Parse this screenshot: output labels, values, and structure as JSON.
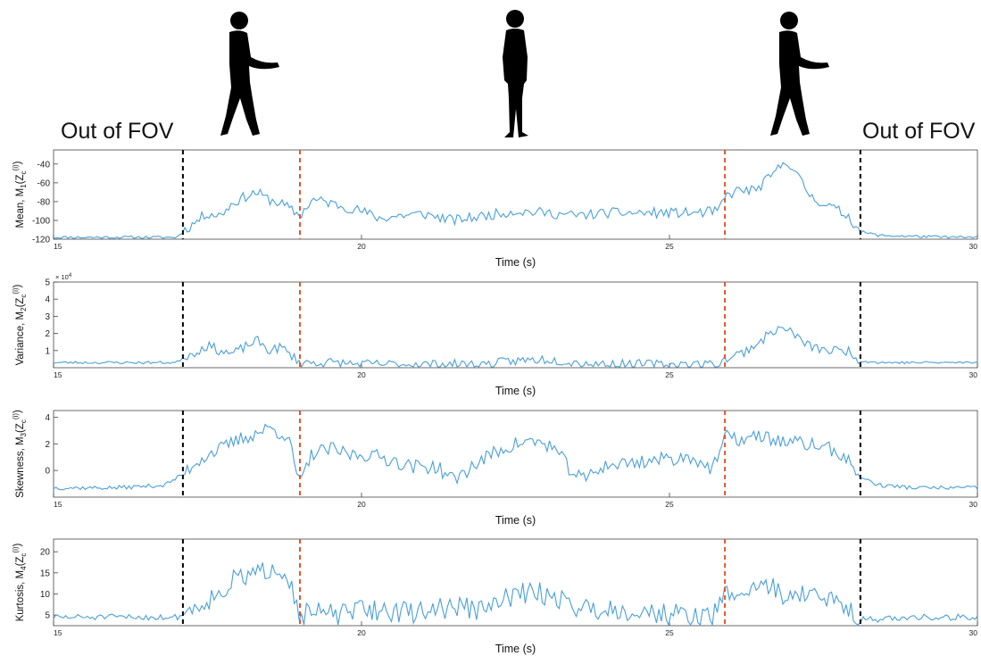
{
  "labels": {
    "out_of_fov_left": "Out of FOV",
    "out_of_fov_right": "Out of FOV"
  },
  "icons": {
    "person_left": "walking-person-icon",
    "person_center": "standing-person-icon",
    "person_right": "walking-person-icon"
  },
  "colors": {
    "line": "#4a9fd9",
    "boundary_black": "#000000",
    "boundary_orange": "#e0582a",
    "axis": "#333333"
  },
  "chart_data": [
    {
      "type": "line",
      "ylabel": "Mean, M",
      "ylabel_sub": "1",
      "ylabel_arg": "(Z",
      "ylabel_arg_sub": "c",
      "ylabel_arg_sup": "(i)",
      "ylabel_close": ")",
      "xlabel": "Time (s)",
      "xlim": [
        15,
        30
      ],
      "ylim": [
        -120,
        -25
      ],
      "yticks": [
        -120,
        -100,
        -80,
        -60,
        -40
      ],
      "ytick_labels": [
        "-120",
        "-100",
        "-80",
        "-60",
        "-40"
      ],
      "xticks": [
        15,
        20,
        25,
        30
      ],
      "xtick_labels": [
        "15",
        "20",
        "25",
        "30"
      ],
      "exponent": "",
      "vlines": [
        {
          "x": 17.1,
          "color": "black"
        },
        {
          "x": 19.0,
          "color": "orange"
        },
        {
          "x": 25.9,
          "color": "orange"
        },
        {
          "x": 28.1,
          "color": "black"
        }
      ],
      "keypoints": [
        [
          15,
          -118
        ],
        [
          16,
          -118
        ],
        [
          17.0,
          -118
        ],
        [
          17.1,
          -112
        ],
        [
          17.3,
          -102
        ],
        [
          17.5,
          -92
        ],
        [
          17.7,
          -95
        ],
        [
          17.9,
          -82
        ],
        [
          18.1,
          -75
        ],
        [
          18.3,
          -70
        ],
        [
          18.5,
          -78
        ],
        [
          18.7,
          -82
        ],
        [
          19.0,
          -95
        ],
        [
          19.2,
          -78
        ],
        [
          19.4,
          -80
        ],
        [
          19.7,
          -85
        ],
        [
          20.0,
          -90
        ],
        [
          20.3,
          -98
        ],
        [
          20.6,
          -95
        ],
        [
          21.0,
          -93
        ],
        [
          21.5,
          -100
        ],
        [
          22.0,
          -95
        ],
        [
          22.5,
          -90
        ],
        [
          23.0,
          -92
        ],
        [
          23.5,
          -95
        ],
        [
          24.0,
          -92
        ],
        [
          24.5,
          -92
        ],
        [
          25.0,
          -92
        ],
        [
          25.5,
          -92
        ],
        [
          25.8,
          -90
        ],
        [
          25.9,
          -75
        ],
        [
          26.1,
          -68
        ],
        [
          26.4,
          -68
        ],
        [
          26.7,
          -50
        ],
        [
          26.9,
          -35
        ],
        [
          27.1,
          -55
        ],
        [
          27.3,
          -75
        ],
        [
          27.6,
          -85
        ],
        [
          27.9,
          -95
        ],
        [
          28.1,
          -112
        ],
        [
          28.4,
          -116
        ],
        [
          29.0,
          -117
        ],
        [
          29.6,
          -118
        ],
        [
          30,
          -118
        ]
      ],
      "noise": 5.5,
      "seed": 11
    },
    {
      "type": "line",
      "ylabel": "Variance, M",
      "ylabel_sub": "2",
      "ylabel_arg": "(Z",
      "ylabel_arg_sub": "c",
      "ylabel_arg_sup": "(i)",
      "ylabel_close": ")",
      "xlabel": "Time (s)",
      "xlim": [
        15,
        30
      ],
      "ylim": [
        0,
        5
      ],
      "yticks": [
        1,
        2,
        3,
        4,
        5
      ],
      "ytick_labels": [
        "1",
        "2",
        "3",
        "4",
        "5"
      ],
      "xticks": [
        15,
        20,
        25,
        30
      ],
      "xtick_labels": [
        "15",
        "20",
        "25",
        "30"
      ],
      "exponent": "× 10",
      "exponent_sup": "4",
      "vlines": [
        {
          "x": 17.1,
          "color": "black"
        },
        {
          "x": 19.0,
          "color": "orange"
        },
        {
          "x": 25.9,
          "color": "orange"
        },
        {
          "x": 28.1,
          "color": "black"
        }
      ],
      "keypoints": [
        [
          15,
          0.3
        ],
        [
          16,
          0.3
        ],
        [
          17.0,
          0.3
        ],
        [
          17.1,
          0.6
        ],
        [
          17.3,
          0.9
        ],
        [
          17.5,
          1.3
        ],
        [
          17.7,
          1.0
        ],
        [
          17.9,
          0.8
        ],
        [
          18.1,
          1.2
        ],
        [
          18.3,
          1.6
        ],
        [
          18.5,
          1.0
        ],
        [
          18.7,
          1.2
        ],
        [
          19.0,
          0.3
        ],
        [
          19.5,
          0.3
        ],
        [
          20.0,
          0.2
        ],
        [
          21.0,
          0.2
        ],
        [
          22.0,
          0.2
        ],
        [
          22.5,
          0.4
        ],
        [
          23.0,
          0.5
        ],
        [
          23.5,
          0.3
        ],
        [
          24.0,
          0.2
        ],
        [
          25.0,
          0.2
        ],
        [
          25.8,
          0.2
        ],
        [
          25.9,
          0.5
        ],
        [
          26.2,
          0.9
        ],
        [
          26.5,
          1.6
        ],
        [
          26.7,
          2.2
        ],
        [
          26.9,
          2.3
        ],
        [
          27.1,
          1.7
        ],
        [
          27.3,
          1.2
        ],
        [
          27.6,
          1.0
        ],
        [
          27.9,
          1.0
        ],
        [
          28.1,
          0.4
        ],
        [
          28.4,
          0.3
        ],
        [
          29,
          0.3
        ],
        [
          30,
          0.3
        ]
      ],
      "noise": 0.28,
      "seed": 23
    },
    {
      "type": "line",
      "ylabel": "Skewness, M",
      "ylabel_sub": "3",
      "ylabel_arg": "(Z",
      "ylabel_arg_sub": "c",
      "ylabel_arg_sup": "(i)",
      "ylabel_close": ")",
      "xlabel": "Time (s)",
      "xlim": [
        15,
        30
      ],
      "ylim": [
        -2,
        4.5
      ],
      "yticks": [
        0,
        2,
        4
      ],
      "ytick_labels": [
        "0",
        "2",
        "4"
      ],
      "xticks": [
        15,
        20,
        25,
        30
      ],
      "xtick_labels": [
        "15",
        "20",
        "25",
        "30"
      ],
      "exponent": "",
      "vlines": [
        {
          "x": 17.1,
          "color": "black"
        },
        {
          "x": 19.0,
          "color": "orange"
        },
        {
          "x": 25.9,
          "color": "orange"
        },
        {
          "x": 28.1,
          "color": "black"
        }
      ],
      "keypoints": [
        [
          15,
          -1.3
        ],
        [
          16,
          -1.3
        ],
        [
          16.8,
          -1.1
        ],
        [
          17.1,
          -0.3
        ],
        [
          17.3,
          0.6
        ],
        [
          17.5,
          1.2
        ],
        [
          17.8,
          1.8
        ],
        [
          18.0,
          2.3
        ],
        [
          18.3,
          2.8
        ],
        [
          18.5,
          3.2
        ],
        [
          18.8,
          2.6
        ],
        [
          19.0,
          -1.1
        ],
        [
          19.2,
          1.3
        ],
        [
          19.5,
          1.6
        ],
        [
          19.8,
          1.2
        ],
        [
          20.1,
          1.2
        ],
        [
          20.5,
          0.8
        ],
        [
          20.8,
          0.3
        ],
        [
          21.2,
          0.3
        ],
        [
          21.5,
          -0.7
        ],
        [
          21.8,
          0.3
        ],
        [
          22.1,
          1.2
        ],
        [
          22.5,
          2.0
        ],
        [
          22.8,
          2.2
        ],
        [
          23.1,
          1.8
        ],
        [
          23.4,
          0.0
        ],
        [
          23.6,
          -0.7
        ],
        [
          23.9,
          0.3
        ],
        [
          24.2,
          0.5
        ],
        [
          24.6,
          0.7
        ],
        [
          25.0,
          0.9
        ],
        [
          25.4,
          1.0
        ],
        [
          25.7,
          0.0
        ],
        [
          25.9,
          2.5
        ],
        [
          26.2,
          2.3
        ],
        [
          26.5,
          2.6
        ],
        [
          26.8,
          2.2
        ],
        [
          27.2,
          2.0
        ],
        [
          27.5,
          1.8
        ],
        [
          27.8,
          1.2
        ],
        [
          28.1,
          -0.5
        ],
        [
          28.4,
          -1.1
        ],
        [
          29,
          -1.3
        ],
        [
          30,
          -1.3
        ]
      ],
      "noise": 0.55,
      "seed": 37
    },
    {
      "type": "line",
      "ylabel": "Kurtosis, M",
      "ylabel_sub": "4",
      "ylabel_arg": "(Z",
      "ylabel_arg_sub": "c",
      "ylabel_arg_sup": "(i)",
      "ylabel_close": ")",
      "xlabel": "Time (s)",
      "xlim": [
        15,
        30
      ],
      "ylim": [
        2.5,
        23
      ],
      "yticks": [
        5,
        10,
        15,
        20
      ],
      "ytick_labels": [
        "5",
        "10",
        "15",
        "20"
      ],
      "xticks": [
        15,
        20,
        25,
        30
      ],
      "xtick_labels": [
        "15",
        "20",
        "25",
        "30"
      ],
      "exponent": "",
      "vlines": [
        {
          "x": 17.1,
          "color": "black"
        },
        {
          "x": 19.0,
          "color": "orange"
        },
        {
          "x": 25.9,
          "color": "orange"
        },
        {
          "x": 28.1,
          "color": "black"
        }
      ],
      "keypoints": [
        [
          15,
          4.5
        ],
        [
          16,
          4.5
        ],
        [
          17.0,
          4.5
        ],
        [
          17.2,
          6.0
        ],
        [
          17.4,
          8.0
        ],
        [
          17.7,
          10.0
        ],
        [
          17.9,
          13.0
        ],
        [
          18.1,
          14.0
        ],
        [
          18.4,
          15.0
        ],
        [
          18.6,
          17.0
        ],
        [
          18.8,
          15.0
        ],
        [
          19.0,
          5.0
        ],
        [
          19.3,
          5.5
        ],
        [
          19.7,
          5.0
        ],
        [
          20.0,
          6.5
        ],
        [
          20.4,
          6.0
        ],
        [
          20.8,
          5.5
        ],
        [
          21.2,
          6.5
        ],
        [
          21.6,
          7.0
        ],
        [
          22.0,
          6.0
        ],
        [
          22.4,
          9.5
        ],
        [
          22.8,
          10.5
        ],
        [
          23.2,
          9.0
        ],
        [
          23.6,
          6.5
        ],
        [
          24.0,
          6.5
        ],
        [
          24.4,
          6.0
        ],
        [
          24.8,
          5.5
        ],
        [
          25.2,
          5.0
        ],
        [
          25.7,
          4.5
        ],
        [
          25.9,
          10.0
        ],
        [
          26.2,
          10.0
        ],
        [
          26.5,
          13.0
        ],
        [
          26.8,
          10.0
        ],
        [
          27.2,
          10.0
        ],
        [
          27.6,
          8.5
        ],
        [
          27.9,
          7.0
        ],
        [
          28.1,
          4.0
        ],
        [
          28.5,
          4.0
        ],
        [
          29,
          4.5
        ],
        [
          30,
          4.5
        ]
      ],
      "noise": 2.6,
      "seed": 51
    }
  ]
}
